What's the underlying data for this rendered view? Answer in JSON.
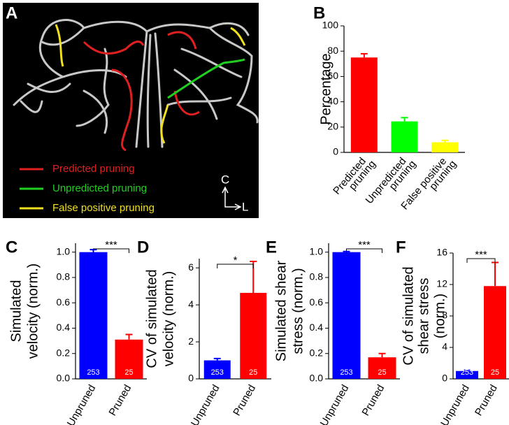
{
  "image_panel": {
    "label": "A",
    "legend": [
      {
        "name": "Predicted pruning",
        "color": "#e02020"
      },
      {
        "name": "Unpredicted pruning",
        "color": "#20d020"
      },
      {
        "name": "False positive pruning",
        "color": "#f0e020"
      }
    ],
    "orientation": [
      "C",
      "L"
    ]
  },
  "chart_data": [
    {
      "type": "bar",
      "label": "B",
      "ylabel": [
        "Percentage"
      ],
      "categories": [
        [
          "Predicted",
          "pruning"
        ],
        [
          "Unpredicted",
          "pruning"
        ],
        [
          "False positive",
          "pruning"
        ]
      ],
      "values": [
        75,
        24.5,
        8
      ],
      "errors": [
        3,
        3,
        1.5
      ],
      "colors": [
        "#ff0000",
        "#00ff00",
        "#ffff00"
      ],
      "ylim": [
        0,
        100
      ],
      "yticks": [
        0,
        20,
        40,
        60,
        80,
        100
      ]
    },
    {
      "type": "bar",
      "label": "C",
      "ylabel": [
        "Simulated",
        "velocity (norm.)"
      ],
      "categories": [
        [
          "Unpruned"
        ],
        [
          "Pruned"
        ]
      ],
      "values": [
        1.0,
        0.31
      ],
      "errors": [
        0.02,
        0.04
      ],
      "colors": [
        "#0000ff",
        "#ff0000"
      ],
      "n": [
        253,
        25
      ],
      "significance": "***",
      "ylim": [
        0,
        1.07
      ],
      "yticks": [
        {
          "value": 0,
          "label": "0.0"
        },
        0.2,
        0.4,
        0.6,
        0.8,
        {
          "value": 1,
          "label": "1.0"
        }
      ]
    },
    {
      "type": "bar",
      "label": "D",
      "ylabel": [
        "CV of simulated",
        "velocity (norm.)"
      ],
      "categories": [
        [
          "Unpruned"
        ],
        [
          "Pruned"
        ]
      ],
      "values": [
        1.0,
        4.65
      ],
      "errors": [
        0.1,
        1.7
      ],
      "colors": [
        "#0000ff",
        "#ff0000"
      ],
      "n": [
        253,
        25
      ],
      "significance": "*",
      "ylim": [
        0,
        6.5
      ],
      "yticks": [
        0,
        2,
        4,
        6
      ]
    },
    {
      "type": "bar",
      "label": "E",
      "ylabel": [
        "Simulated shear",
        "stress (norm.)"
      ],
      "categories": [
        [
          "Unpruned"
        ],
        [
          "Pruned"
        ]
      ],
      "values": [
        1.0,
        0.17
      ],
      "errors": [
        0.005,
        0.03
      ],
      "colors": [
        "#0000ff",
        "#ff0000"
      ],
      "n": [
        253,
        25
      ],
      "significance": "***",
      "ylim": [
        0,
        1.07
      ],
      "yticks": [
        {
          "value": 0,
          "label": "0.0"
        },
        0.2,
        0.4,
        0.6,
        0.8,
        {
          "value": 1,
          "label": "1.0"
        }
      ]
    },
    {
      "type": "bar",
      "label": "F",
      "ylabel": [
        "CV of simulated",
        "shear stress",
        "(norm.)"
      ],
      "categories": [
        [
          "Unpruned"
        ],
        [
          "Pruned"
        ]
      ],
      "values": [
        1.0,
        11.8
      ],
      "errors": [
        0.1,
        3.0
      ],
      "colors": [
        "#0000ff",
        "#ff0000"
      ],
      "n": [
        253,
        25
      ],
      "significance": "***",
      "ylim": [
        0,
        16
      ],
      "yticks": [
        0,
        4,
        8,
        12,
        16
      ]
    }
  ]
}
